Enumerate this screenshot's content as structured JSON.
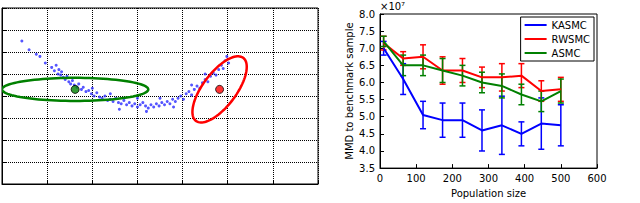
{
  "chart_data": [
    {
      "type": "scatter",
      "xlim": [
        0,
        350
      ],
      "ylim": [
        0,
        160
      ],
      "xticks": [
        0,
        50,
        100,
        150,
        200,
        250,
        300,
        350
      ],
      "yticks": [
        0,
        20,
        40,
        60,
        80,
        100,
        120,
        140,
        160
      ],
      "grid": true,
      "tick_labels": false,
      "series": [
        {
          "color": "#2b2bff",
          "marker": "point",
          "x": [
            55,
            58,
            60,
            62,
            63,
            65,
            66,
            68,
            70,
            72,
            74,
            76,
            78,
            80,
            83,
            85,
            88,
            90,
            93,
            96,
            99,
            102,
            105,
            108,
            111,
            114,
            117,
            120,
            123,
            126,
            129,
            132,
            135,
            138,
            141,
            144,
            147,
            150,
            153,
            156,
            159,
            162,
            165,
            168,
            171,
            174,
            177,
            180,
            183,
            186,
            189,
            192,
            195,
            198,
            201,
            204,
            207,
            210,
            213,
            216,
            219,
            222,
            225,
            228,
            231,
            234,
            237,
            240,
            243,
            245,
            247,
            249,
            251,
            22,
            30,
            38,
            42,
            48,
            130,
            160,
            190,
            150,
            175,
            120,
            100,
            210,
            225
          ],
          "values": [
            106,
            103,
            108,
            100,
            104,
            99,
            102,
            97,
            95,
            98,
            93,
            91,
            94,
            90,
            88,
            91,
            86,
            88,
            84,
            85,
            82,
            80,
            83,
            79,
            78,
            80,
            76,
            77,
            75,
            78,
            74,
            73,
            76,
            72,
            74,
            71,
            73,
            70,
            72,
            74,
            71,
            69,
            72,
            70,
            73,
            71,
            74,
            72,
            75,
            73,
            77,
            75,
            78,
            80,
            77,
            82,
            84,
            81,
            86,
            89,
            87,
            92,
            95,
            93,
            98,
            101,
            99,
            104,
            108,
            105,
            112,
            116,
            110,
            130,
            122,
            118,
            116,
            110,
            68,
            66,
            70,
            78,
            78,
            82,
            87,
            90,
            100
          ]
        },
        {
          "color": "#008000",
          "marker": "circle",
          "x": [
            81
          ],
          "values": [
            86
          ]
        },
        {
          "color": "#ff0000",
          "marker": "circle",
          "x": [
            241
          ],
          "values": [
            86
          ]
        }
      ],
      "ellipses": [
        {
          "center": [
            81,
            86
          ],
          "semi_axes": [
            81,
            10.5
          ],
          "angle": 0,
          "color": "#008000"
        },
        {
          "center": [
            241,
            86
          ],
          "semi_axes": [
            39,
            17
          ],
          "angle": 45,
          "color": "#ff0000"
        }
      ]
    },
    {
      "type": "line",
      "ylabel": "MMD to benchmark sample",
      "xlabel": "Population size",
      "annotation": "×10⁷",
      "xlim": [
        0,
        600
      ],
      "xticks": [
        0,
        100,
        200,
        300,
        400,
        500,
        600
      ],
      "ylim": [
        3.5,
        8.0
      ],
      "yticks": [
        3.5,
        {
          "value": 4,
          "label": "4.0"
        },
        4.5,
        {
          "value": 5,
          "label": "5.0"
        },
        5.5,
        {
          "value": 6,
          "label": "6.0"
        },
        6.5,
        {
          "value": 7,
          "label": "7.0"
        },
        7.5,
        {
          "value": 8,
          "label": "8.0"
        }
      ],
      "grid": false,
      "legend": "upper right",
      "x": [
        10,
        64,
        119,
        173,
        228,
        282,
        337,
        391,
        446,
        500
      ],
      "series": [
        {
          "name": "KASMC",
          "color": "#0000ff",
          "line_style": "solid",
          "values": [
            7.0,
            6.1,
            5.05,
            4.9,
            4.9,
            4.6,
            4.75,
            4.5,
            4.8,
            4.75
          ],
          "errors": [
            0.2,
            0.45,
            0.4,
            0.5,
            0.5,
            0.6,
            0.85,
            0.35,
            0.75,
            0.6
          ]
        },
        {
          "name": "RWSMC",
          "color": "#ff0000",
          "line_style": "solid",
          "values": [
            7.15,
            6.7,
            6.75,
            6.35,
            6.35,
            6.15,
            6.15,
            6.2,
            5.75,
            5.8
          ],
          "errors": [
            0.2,
            0.2,
            0.35,
            0.4,
            0.35,
            0.3,
            0.4,
            0.35,
            0.3,
            0.35
          ]
        },
        {
          "name": "ASMC",
          "color": "#008000",
          "line_style": "solid",
          "values": [
            7.2,
            6.5,
            6.5,
            6.35,
            6.2,
            6.0,
            5.9,
            5.65,
            5.45,
            5.75
          ],
          "errors": [
            0.15,
            0.3,
            0.3,
            0.35,
            0.3,
            0.3,
            0.35,
            0.3,
            0.3,
            0.35
          ]
        }
      ]
    }
  ]
}
